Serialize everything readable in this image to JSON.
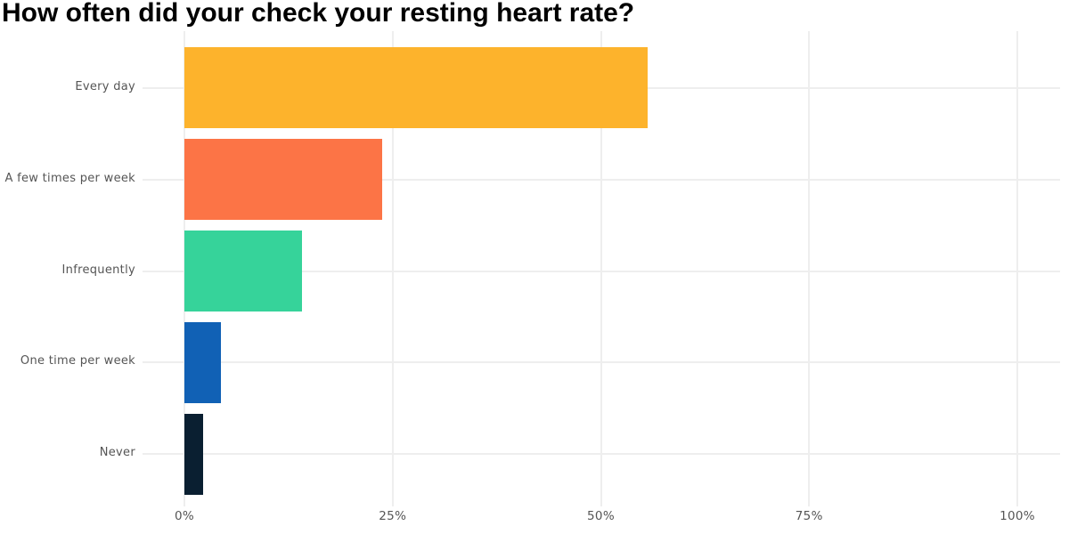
{
  "page": {
    "background_color": "#FFFFFF",
    "text_color": "#555555",
    "grid_color": "#EEEEEE",
    "title_color": "#000000"
  },
  "chart_data": {
    "type": "bar",
    "orientation": "horizontal",
    "title": "How often did your check your resting heart rate?",
    "categories": [
      "Every day",
      "A few times per week",
      "Infrequently",
      "One time per week",
      "Never"
    ],
    "values": [
      55.6,
      23.7,
      14.1,
      4.4,
      2.2
    ],
    "unit": "%",
    "bar_colors": [
      "#FDB32C",
      "#FC7446",
      "#36D39A",
      "#1161B5",
      "#0A1F31"
    ],
    "x_tick_labels": [
      "0%",
      "25%",
      "50%",
      "75%",
      "100%"
    ],
    "x_tick_values": [
      0,
      25,
      50,
      75,
      100
    ],
    "xlim": [
      0,
      100
    ],
    "xlabel": "",
    "ylabel": "",
    "grid": "both",
    "legend": "none"
  }
}
